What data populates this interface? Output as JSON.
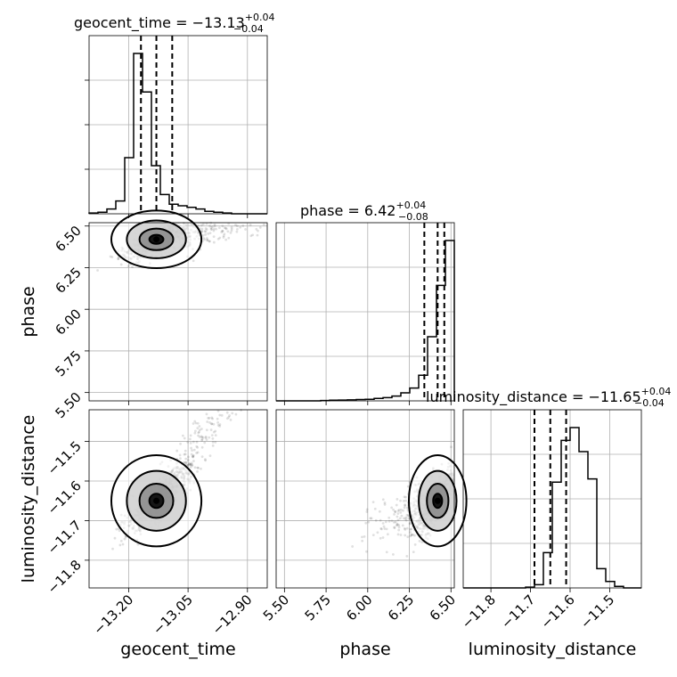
{
  "chart_data": {
    "type": "corner",
    "parameters": [
      "geocent_time",
      "phase",
      "luminosity_distance"
    ],
    "axis_labels": [
      "geocent_time",
      "phase",
      "luminosity_distance"
    ],
    "titles": [
      {
        "name": "geocent_time",
        "median": "−13.13",
        "plus": "+0.04",
        "minus": "−0.04"
      },
      {
        "name": "phase",
        "median": "6.42",
        "plus": "+0.04",
        "minus": "−0.08"
      },
      {
        "name": "luminosity_distance",
        "median": "−11.65",
        "plus": "+0.04",
        "minus": "−0.04"
      }
    ],
    "ranges": [
      [
        -13.3,
        -12.85
      ],
      [
        5.45,
        6.52
      ],
      [
        -11.87,
        -11.42
      ]
    ],
    "ticks": [
      {
        "values": [
          -13.2,
          -13.05,
          -12.9
        ],
        "labels": [
          "−13.20",
          "−13.05",
          "−12.90"
        ]
      },
      {
        "values": [
          5.5,
          5.75,
          6.0,
          6.25,
          6.5
        ],
        "labels": [
          "5.50",
          "5.75",
          "6.00",
          "6.25",
          "6.50"
        ]
      },
      {
        "values": [
          -11.8,
          -11.7,
          -11.6,
          -11.5
        ],
        "labels": [
          "−11.8",
          "−11.7",
          "−11.6",
          "−11.5"
        ]
      }
    ],
    "quantiles": [
      [
        -13.169,
        -13.13,
        -13.09
      ],
      [
        6.34,
        6.42,
        6.46
      ],
      [
        -11.69,
        -11.65,
        -11.61
      ]
    ],
    "histograms": [
      {
        "edges_start": -13.3,
        "bin_width": 0.0225,
        "counts": [
          0.5,
          1,
          3,
          8,
          35,
          100,
          76,
          30,
          12,
          6,
          5,
          4,
          3,
          1.5,
          1,
          0.5,
          0,
          0,
          0,
          0
        ]
      },
      {
        "edges_start": 5.45,
        "bin_width": 0.0535,
        "counts": [
          0,
          0,
          0,
          0,
          0,
          0.2,
          0.4,
          0.5,
          0.6,
          0.8,
          1,
          1.5,
          2,
          3,
          5,
          8,
          16,
          40,
          72,
          100
        ]
      },
      {
        "edges_start": -11.87,
        "bin_width": 0.0225,
        "counts": [
          0,
          0,
          0,
          0,
          0,
          0,
          0,
          0.5,
          2,
          22,
          66,
          92,
          100,
          85,
          68,
          12,
          4,
          1,
          0,
          0
        ]
      }
    ],
    "grid": true
  }
}
